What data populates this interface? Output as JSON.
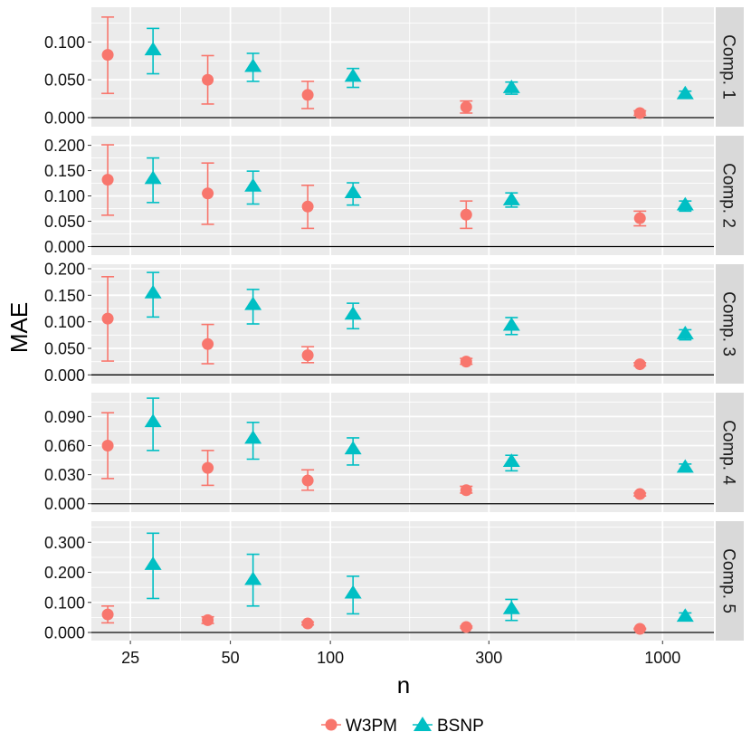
{
  "colors": {
    "panel_bg": "#ebebeb",
    "grid": "#ffffff",
    "strip_bg": "#d9d9d9",
    "w3pm": "#f8766d",
    "bsnp": "#00bfc4",
    "zero_line": "#000000"
  },
  "chart_data": {
    "type": "scatter",
    "subtype": "faceted point with error bars",
    "xlabel": "n",
    "ylabel": "MAE",
    "x_scale": "log",
    "x_ticks": [
      25,
      50,
      100,
      300,
      1000
    ],
    "x_tick_labels": [
      "25",
      "50",
      "100",
      "300",
      "1000"
    ],
    "x_dodge_factor": 1.17,
    "legend": {
      "position": "bottom",
      "entries": [
        {
          "name": "W3PM",
          "shape": "circle",
          "color_key": "w3pm"
        },
        {
          "name": "BSNP",
          "shape": "triangle",
          "color_key": "bsnp"
        }
      ]
    },
    "panels": [
      {
        "label": "Comp. 1",
        "ylim": [
          -0.006,
          0.14
        ],
        "y_ticks": [
          0.0,
          0.05,
          0.1
        ],
        "y_tick_labels": [
          "0.000",
          "0.050",
          "0.100"
        ],
        "series": [
          {
            "name": "W3PM",
            "x": [
              25,
              50,
              100,
              300,
              1000
            ],
            "y": [
              0.083,
              0.05,
              0.03,
              0.014,
              0.006
            ],
            "ymin": [
              0.032,
              0.018,
              0.012,
              0.006,
              0.003
            ],
            "ymax": [
              0.133,
              0.082,
              0.048,
              0.022,
              0.009
            ]
          },
          {
            "name": "BSNP",
            "x": [
              25,
              50,
              100,
              300,
              1000
            ],
            "y": [
              0.09,
              0.068,
              0.055,
              0.04,
              0.032
            ],
            "ymin": [
              0.058,
              0.048,
              0.04,
              0.031,
              0.028
            ],
            "ymax": [
              0.118,
              0.085,
              0.065,
              0.047,
              0.035
            ]
          }
        ]
      },
      {
        "label": "Comp. 2",
        "ylim": [
          -0.008,
          0.21
        ],
        "y_ticks": [
          0.0,
          0.05,
          0.1,
          0.15,
          0.2
        ],
        "y_tick_labels": [
          "0.000",
          "0.050",
          "0.100",
          "0.150",
          "0.200"
        ],
        "series": [
          {
            "name": "W3PM",
            "x": [
              25,
              50,
              100,
              300,
              1000
            ],
            "y": [
              0.132,
              0.105,
              0.079,
              0.063,
              0.056
            ],
            "ymin": [
              0.062,
              0.044,
              0.036,
              0.036,
              0.041
            ],
            "ymax": [
              0.201,
              0.165,
              0.121,
              0.09,
              0.07
            ]
          },
          {
            "name": "BSNP",
            "x": [
              25,
              50,
              100,
              300,
              1000
            ],
            "y": [
              0.135,
              0.12,
              0.107,
              0.093,
              0.083
            ],
            "ymin": [
              0.087,
              0.084,
              0.082,
              0.078,
              0.07
            ],
            "ymax": [
              0.175,
              0.149,
              0.126,
              0.106,
              0.09
            ]
          }
        ]
      },
      {
        "label": "Comp. 3",
        "ylim": [
          -0.008,
          0.2
        ],
        "y_ticks": [
          0.0,
          0.05,
          0.1,
          0.15,
          0.2
        ],
        "y_tick_labels": [
          "0.000",
          "0.050",
          "0.100",
          "0.150",
          "0.200"
        ],
        "series": [
          {
            "name": "W3PM",
            "x": [
              25,
              50,
              100,
              300,
              1000
            ],
            "y": [
              0.106,
              0.058,
              0.037,
              0.025,
              0.02
            ],
            "ymin": [
              0.026,
              0.021,
              0.023,
              0.02,
              0.017
            ],
            "ymax": [
              0.185,
              0.095,
              0.053,
              0.031,
              0.023
            ]
          },
          {
            "name": "BSNP",
            "x": [
              25,
              50,
              100,
              300,
              1000
            ],
            "y": [
              0.155,
              0.133,
              0.115,
              0.094,
              0.078
            ],
            "ymin": [
              0.109,
              0.096,
              0.087,
              0.076,
              0.066
            ],
            "ymax": [
              0.193,
              0.161,
              0.135,
              0.108,
              0.085
            ]
          }
        ]
      },
      {
        "label": "Comp. 4",
        "ylim": [
          -0.004,
          0.11
        ],
        "y_ticks": [
          0.0,
          0.03,
          0.06,
          0.09
        ],
        "y_tick_labels": [
          "0.000",
          "0.030",
          "0.060",
          "0.090"
        ],
        "series": [
          {
            "name": "W3PM",
            "x": [
              25,
              50,
              100,
              300,
              1000
            ],
            "y": [
              0.06,
              0.037,
              0.024,
              0.014,
              0.01
            ],
            "ymin": [
              0.026,
              0.019,
              0.014,
              0.011,
              0.008
            ],
            "ymax": [
              0.094,
              0.055,
              0.035,
              0.018,
              0.011
            ]
          },
          {
            "name": "BSNP",
            "x": [
              25,
              50,
              100,
              300,
              1000
            ],
            "y": [
              0.085,
              0.068,
              0.057,
              0.044,
              0.038
            ],
            "ymin": [
              0.055,
              0.046,
              0.04,
              0.034,
              0.033
            ],
            "ymax": [
              0.109,
              0.084,
              0.068,
              0.05,
              0.041
            ]
          }
        ]
      },
      {
        "label": "Comp. 5",
        "ylim": [
          -0.012,
          0.355
        ],
        "y_ticks": [
          0.0,
          0.1,
          0.2,
          0.3
        ],
        "y_tick_labels": [
          "0.000",
          "0.100",
          "0.200",
          "0.300"
        ],
        "series": [
          {
            "name": "W3PM",
            "x": [
              25,
              50,
              100,
              300,
              1000
            ],
            "y": [
              0.06,
              0.041,
              0.03,
              0.018,
              0.012
            ],
            "ymin": [
              0.032,
              0.03,
              0.025,
              0.015,
              0.01
            ],
            "ymax": [
              0.088,
              0.052,
              0.035,
              0.021,
              0.014
            ]
          },
          {
            "name": "BSNP",
            "x": [
              25,
              50,
              100,
              300,
              1000
            ],
            "y": [
              0.227,
              0.177,
              0.132,
              0.08,
              0.055
            ],
            "ymin": [
              0.113,
              0.088,
              0.062,
              0.04,
              0.04
            ],
            "ymax": [
              0.33,
              0.26,
              0.187,
              0.11,
              0.065
            ]
          }
        ]
      }
    ]
  }
}
